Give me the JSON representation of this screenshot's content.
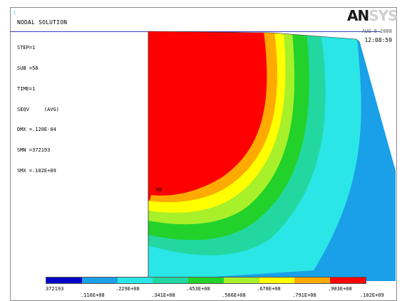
{
  "window_number": "1",
  "title": "NODAL SOLUTION",
  "info_lines": [
    "STEP=1",
    "SUB =58",
    "TIME=1",
    "SEQV     (AVG)",
    "DMX =.120E-04",
    "SMN =372193",
    "SMX =.102E+09"
  ],
  "logo": {
    "dark": "AN",
    "light": "SYS"
  },
  "date": "AUG  6 2008",
  "time": "12:08:59",
  "mx_label": "MX",
  "legend": {
    "colors": [
      "#0000c8",
      "#1aa0e8",
      "#2ae6e6",
      "#22d8a0",
      "#22d22a",
      "#a8f02a",
      "#ffff00",
      "#ffaa00",
      "#ff0000"
    ],
    "top_labels": [
      "372193",
      ".229E+08",
      ".453E+08",
      ".678E+08",
      ".903E+08"
    ],
    "bottom_labels": [
      ".116E+08",
      ".341E+08",
      ".566E+08",
      ".791E+08",
      ".102E+09"
    ]
  }
}
